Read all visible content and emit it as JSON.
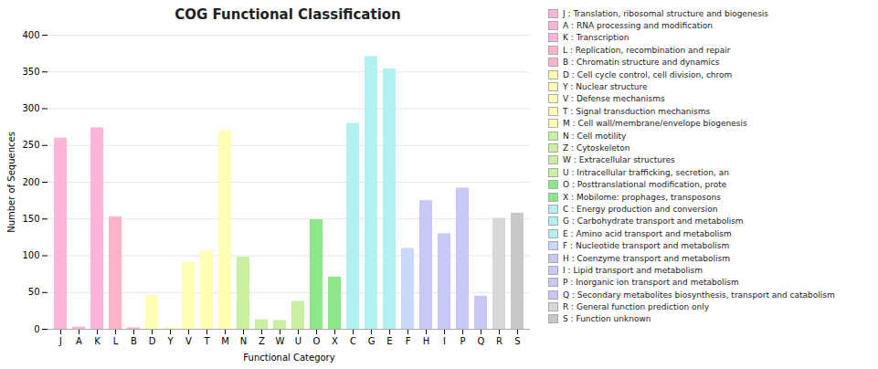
{
  "chart_data": {
    "type": "bar",
    "title": "COG Functional Classification",
    "xlabel": "Functional Category",
    "ylabel": "Number of Sequences",
    "categories": [
      "J",
      "A",
      "K",
      "L",
      "B",
      "D",
      "Y",
      "V",
      "T",
      "M",
      "N",
      "Z",
      "W",
      "U",
      "O",
      "X",
      "C",
      "G",
      "E",
      "F",
      "H",
      "I",
      "P",
      "Q",
      "R",
      "S"
    ],
    "values": [
      260,
      3,
      274,
      153,
      2,
      46,
      2,
      91,
      106,
      270,
      98,
      13,
      12,
      38,
      149,
      71,
      280,
      371,
      354,
      110,
      175,
      130,
      192,
      45,
      151,
      158
    ],
    "colors": [
      "#ffb3d9",
      "#ffb3d9",
      "#ffb3d9",
      "#ffb3c9",
      "#ffb3c9",
      "#ffffb3",
      "#ffffb3",
      "#ffffb3",
      "#ffffb3",
      "#ffffb3",
      "#c8f0a0",
      "#c8f0a0",
      "#c8f0a0",
      "#c8f0a0",
      "#8ae88a",
      "#8ae88a",
      "#b3f0f0",
      "#b3f0f0",
      "#b3f0f0",
      "#c8d8f8",
      "#c8c8f8",
      "#c8c8f8",
      "#c8c8f8",
      "#c8c8f8",
      "#d8d8d8",
      "#c8c8c8"
    ],
    "ylim": [
      0,
      400
    ],
    "yticks": [
      0,
      50,
      100,
      150,
      200,
      250,
      300,
      350,
      400
    ],
    "grid": true,
    "legend": "right",
    "legend_entries": [
      {
        "label": "J : Translation, ribosomal structure and biogenesis",
        "color": "#ffb3d9"
      },
      {
        "label": "A : RNA processing and modification",
        "color": "#ffb3d9"
      },
      {
        "label": "K : Transcription",
        "color": "#ffb3d9"
      },
      {
        "label": "L : Replication, recombination and repair",
        "color": "#ffb3c9"
      },
      {
        "label": "B : Chromatin structure and dynamics",
        "color": "#ffb3c9"
      },
      {
        "label": "D : Cell cycle control, cell division, chrom",
        "color": "#ffffb3"
      },
      {
        "label": "Y : Nuclear structure",
        "color": "#ffffb3"
      },
      {
        "label": "V : Defense mechanisms",
        "color": "#ffffb3"
      },
      {
        "label": "T : Signal transduction mechanisms",
        "color": "#ffffb3"
      },
      {
        "label": "M : Cell wall/membrane/envelope biogenesis",
        "color": "#ffffb3"
      },
      {
        "label": "N : Cell motility",
        "color": "#c8f0a0"
      },
      {
        "label": "Z : Cytoskeleton",
        "color": "#c8f0a0"
      },
      {
        "label": "W : Extracellular structures",
        "color": "#c8f0a0"
      },
      {
        "label": "U : Intracellular trafficking, secretion, an",
        "color": "#c8f0a0"
      },
      {
        "label": "O : Posttranslational modification, prote",
        "color": "#8ae88a"
      },
      {
        "label": "X : Mobilome: prophages, transposons",
        "color": "#8ae88a"
      },
      {
        "label": "C : Energy production and conversion",
        "color": "#b3f0f0"
      },
      {
        "label": "G : Carbohydrate transport and metabolism",
        "color": "#b3f0f0"
      },
      {
        "label": "E : Amino acid transport and metabolism",
        "color": "#b3f0f0"
      },
      {
        "label": "F : Nucleotide transport and metabolism",
        "color": "#c8d8f8"
      },
      {
        "label": "H : Coenzyme transport and metabolism",
        "color": "#c8c8f8"
      },
      {
        "label": "I : Lipid transport and metabolism",
        "color": "#c8c8f8"
      },
      {
        "label": "P : Inorganic ion transport and metabolism",
        "color": "#c8c8f8"
      },
      {
        "label": "Q : Secondary metabolites biosynthesis, transport and catabolism",
        "color": "#c8c8f8"
      },
      {
        "label": "R : General function prediction only",
        "color": "#d8d8d8"
      },
      {
        "label": "S : Function unknown",
        "color": "#c8c8c8"
      }
    ]
  }
}
